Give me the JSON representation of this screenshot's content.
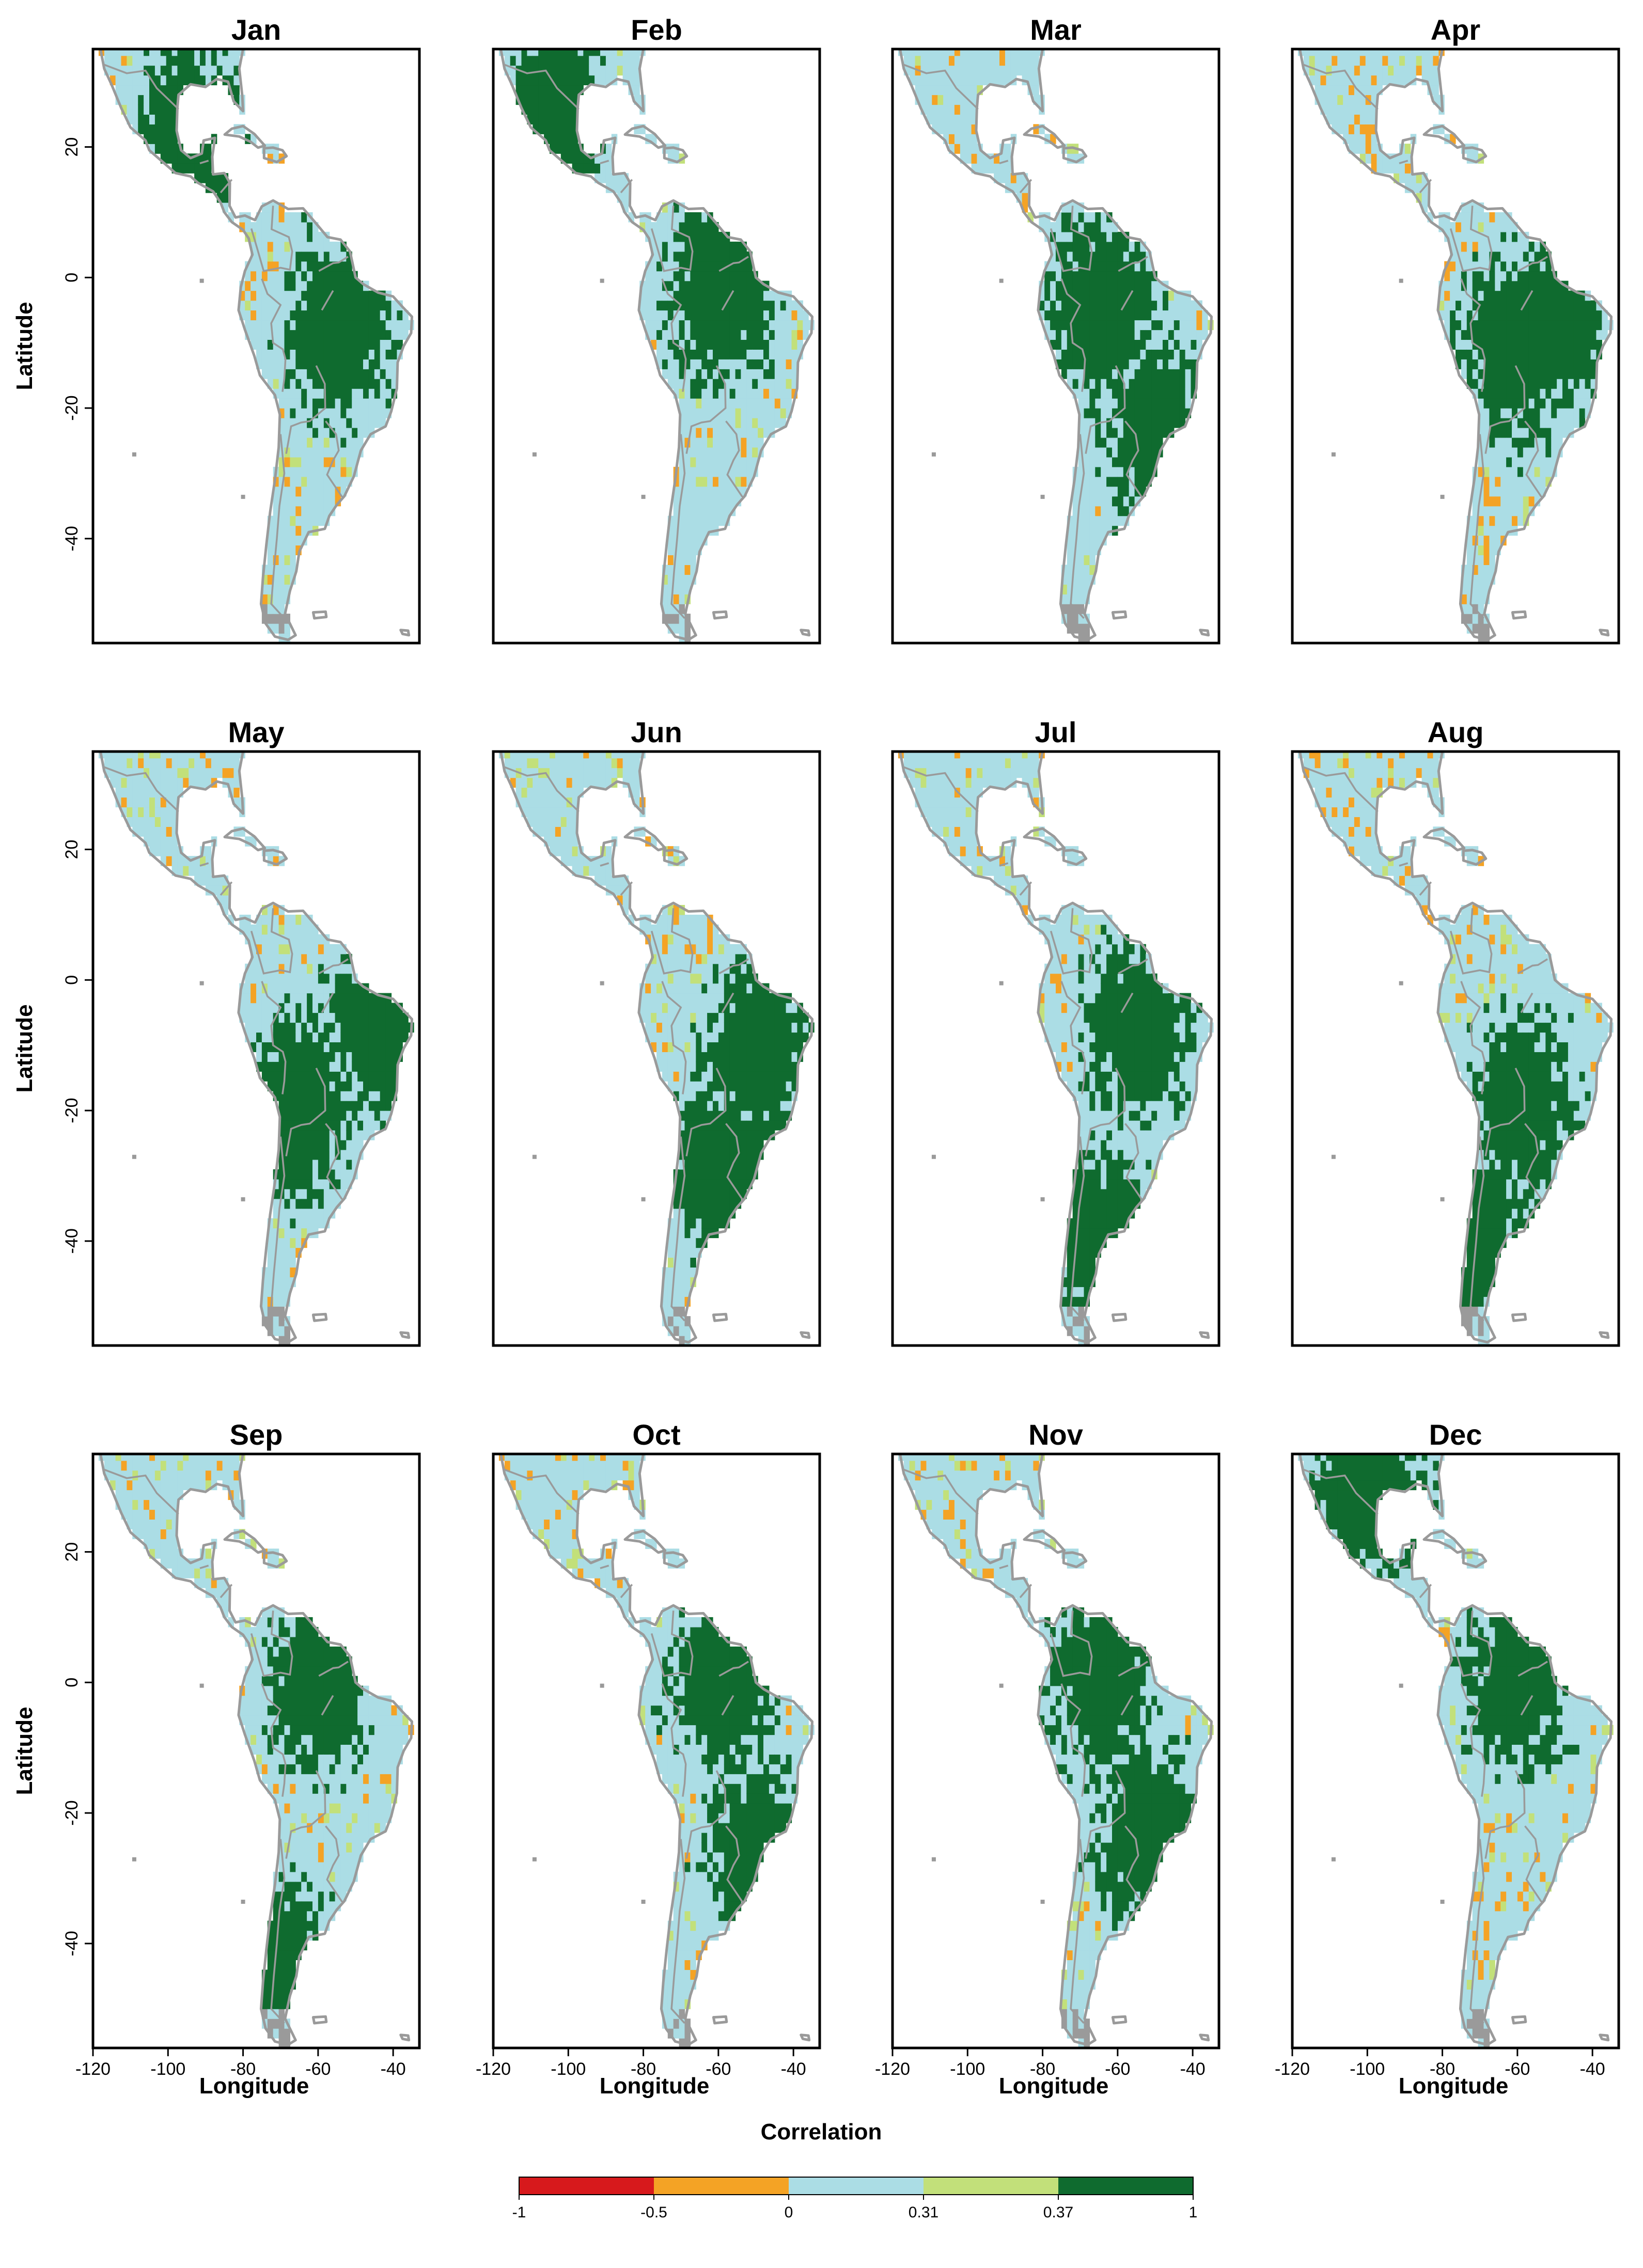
{
  "figure": {
    "colorbar_title": "Correlation",
    "x_axis_label": "Longitude",
    "y_axis_label": "Latitude",
    "x_ticks": [
      -120,
      -100,
      -80,
      -60,
      -40
    ],
    "x_tick_labels": [
      "-120",
      "-100",
      "-80",
      "-60",
      "-40"
    ],
    "y_ticks": [
      20,
      0,
      -20,
      -40
    ],
    "y_tick_labels": [
      "20",
      "0",
      "-20",
      "-40"
    ],
    "lon_range": [
      -120,
      -33
    ],
    "lat_range": [
      -56,
      35
    ]
  },
  "panels": [
    {
      "month": "Jan"
    },
    {
      "month": "Feb"
    },
    {
      "month": "Mar"
    },
    {
      "month": "Apr"
    },
    {
      "month": "May"
    },
    {
      "month": "Jun"
    },
    {
      "month": "Jul"
    },
    {
      "month": "Aug"
    },
    {
      "month": "Sep"
    },
    {
      "month": "Oct"
    },
    {
      "month": "Nov"
    },
    {
      "month": "Dec"
    }
  ],
  "colorbar": {
    "breaks": [
      -1,
      -0.5,
      0,
      0.31,
      0.37,
      1
    ],
    "labels": [
      "-1",
      "-0.5",
      "0",
      "0.31",
      "0.37",
      "1"
    ],
    "colors": [
      "#d7191c",
      "#f4a325",
      "#abdde5",
      "#c2e07a",
      "#0f6b2f"
    ]
  },
  "colors": {
    "strong_positive": "#0f6b2f",
    "weak_positive": "#c2e07a",
    "neutral": "#abdde5",
    "negative": "#f4a325",
    "strong_negative": "#d7191c",
    "coastline": "#9a9a9a"
  }
}
